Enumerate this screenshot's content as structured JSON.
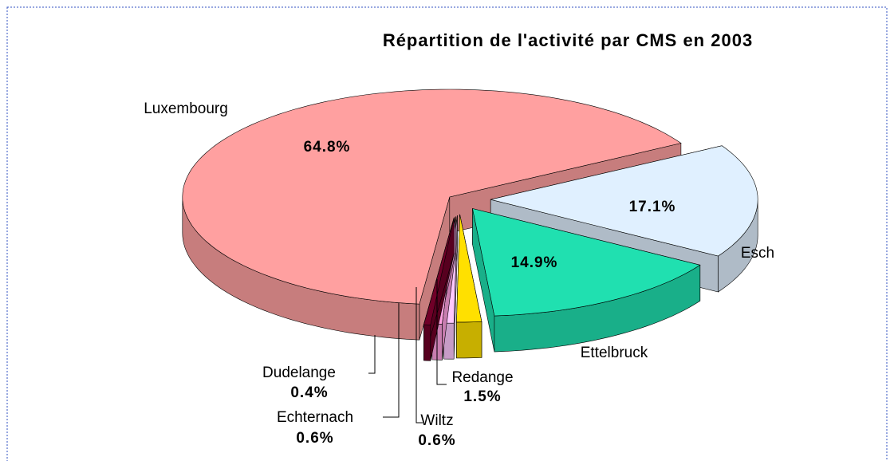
{
  "chart_data": {
    "type": "pie",
    "title": "Répartition de l'activité par CMS en 2003",
    "categories": [
      "Esch",
      "Ettelbruck",
      "Redange",
      "Wiltz",
      "Echternach",
      "Dudelange",
      "Luxembourg"
    ],
    "values": [
      17.1,
      14.9,
      1.5,
      0.6,
      0.6,
      0.4,
      64.8
    ],
    "value_labels": [
      "17.1%",
      "14.9%",
      "1.5%",
      "0.6%",
      "0.6%",
      "0.4%",
      "64.8%"
    ],
    "colors": [
      "#e0f0ff",
      "#20e0b0",
      "#ffe000",
      "#ffc8ff",
      "#ffa0e0",
      "#700028",
      "#ffa0a0"
    ]
  }
}
